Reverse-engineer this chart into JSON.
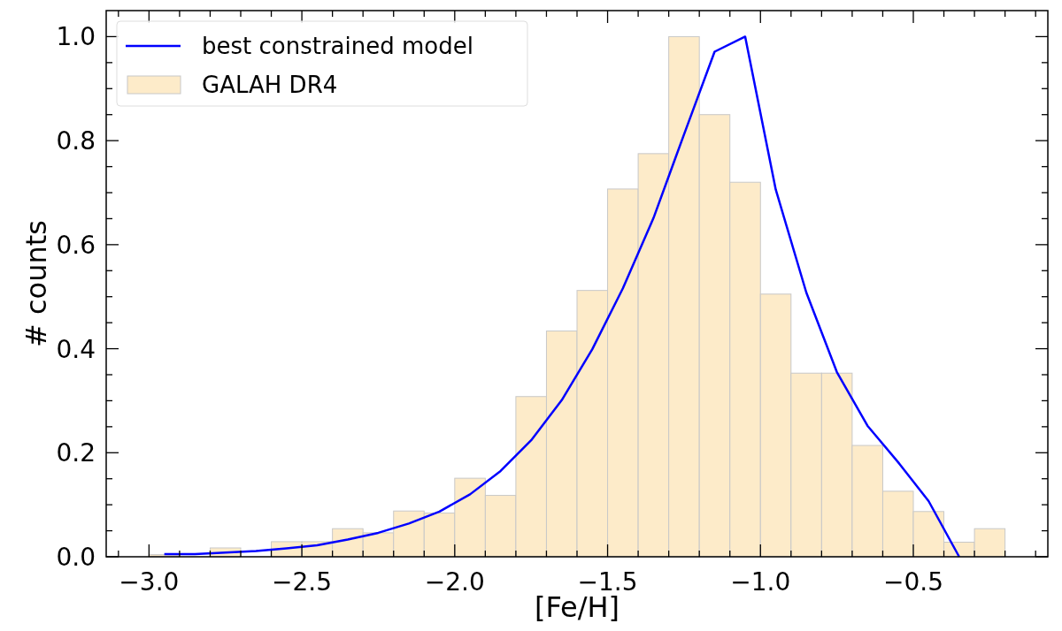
{
  "chart_data": {
    "type": "histogram",
    "xlabel": "[Fe/H]",
    "ylabel": "# counts",
    "legend": "top left",
    "xlim": [
      -3.14,
      -0.06
    ],
    "ylim": [
      0,
      1.05
    ],
    "xticks": [
      {
        "value": -3.1,
        "label": null
      },
      {
        "value": -3.0,
        "label": "−3.0"
      },
      {
        "value": -2.9,
        "label": null
      },
      {
        "value": -2.8,
        "label": null
      },
      {
        "value": -2.7,
        "label": null
      },
      {
        "value": -2.6,
        "label": null
      },
      {
        "value": -2.5,
        "label": "−2.5"
      },
      {
        "value": -2.4,
        "label": null
      },
      {
        "value": -2.3,
        "label": null
      },
      {
        "value": -2.2,
        "label": null
      },
      {
        "value": -2.1,
        "label": null
      },
      {
        "value": -2.0,
        "label": "−2.0"
      },
      {
        "value": -1.9,
        "label": null
      },
      {
        "value": -1.8,
        "label": null
      },
      {
        "value": -1.7,
        "label": null
      },
      {
        "value": -1.6,
        "label": null
      },
      {
        "value": -1.5,
        "label": "−1.5"
      },
      {
        "value": -1.4,
        "label": null
      },
      {
        "value": -1.3,
        "label": null
      },
      {
        "value": -1.2,
        "label": null
      },
      {
        "value": -1.1,
        "label": null
      },
      {
        "value": -1.0,
        "label": "−1.0"
      },
      {
        "value": -0.9,
        "label": null
      },
      {
        "value": -0.8,
        "label": null
      },
      {
        "value": -0.7,
        "label": null
      },
      {
        "value": -0.6,
        "label": null
      },
      {
        "value": -0.5,
        "label": "−0.5"
      },
      {
        "value": -0.4,
        "label": null
      },
      {
        "value": -0.3,
        "label": null
      },
      {
        "value": -0.2,
        "label": null
      },
      {
        "value": -0.1,
        "label": null
      }
    ],
    "yticks": [
      {
        "value": 0,
        "label": "0.0"
      },
      {
        "value": 0.05,
        "label": null
      },
      {
        "value": 0.1,
        "label": null
      },
      {
        "value": 0.15,
        "label": null
      },
      {
        "value": 0.2,
        "label": "0.2"
      },
      {
        "value": 0.25,
        "label": null
      },
      {
        "value": 0.3,
        "label": null
      },
      {
        "value": 0.35,
        "label": null
      },
      {
        "value": 0.4,
        "label": "0.4"
      },
      {
        "value": 0.45,
        "label": null
      },
      {
        "value": 0.5,
        "label": null
      },
      {
        "value": 0.55,
        "label": null
      },
      {
        "value": 0.6,
        "label": "0.6"
      },
      {
        "value": 0.65,
        "label": null
      },
      {
        "value": 0.7,
        "label": null
      },
      {
        "value": 0.75,
        "label": null
      },
      {
        "value": 0.8,
        "label": "0.8"
      },
      {
        "value": 0.85,
        "label": null
      },
      {
        "value": 0.9,
        "label": null
      },
      {
        "value": 0.95,
        "label": null
      },
      {
        "value": 1.0,
        "label": "1.0"
      }
    ],
    "series": [
      {
        "type": "line",
        "name": "best constrained model",
        "color": "#0000ff",
        "x": [
          -2.95,
          -2.85,
          -2.75,
          -2.65,
          -2.55,
          -2.45,
          -2.35,
          -2.25,
          -2.15,
          -2.05,
          -1.95,
          -1.85,
          -1.75,
          -1.65,
          -1.55,
          -1.45,
          -1.35,
          -1.25,
          -1.15,
          -1.05,
          -0.95,
          -0.85,
          -0.75,
          -0.65,
          -0.55,
          -0.45,
          -0.35
        ],
        "values": [
          0.005,
          0.005,
          0.008,
          0.011,
          0.016,
          0.022,
          0.033,
          0.046,
          0.064,
          0.087,
          0.12,
          0.165,
          0.224,
          0.301,
          0.399,
          0.516,
          0.651,
          0.812,
          0.971,
          1.0,
          0.706,
          0.508,
          0.355,
          0.252,
          0.182,
          0.107,
          0
        ]
      },
      {
        "name": "GALAH DR4",
        "color": "#fdebc9",
        "bins": [
          -3.0,
          -2.9,
          -2.8,
          -2.7,
          -2.6,
          -2.5,
          -2.4,
          -2.3,
          -2.2,
          -2.1,
          -2.0,
          -1.9,
          -1.8,
          -1.7,
          -1.6,
          -1.5,
          -1.4,
          -1.3,
          -1.2,
          -1.1,
          -1.0,
          -0.9,
          -0.8,
          -0.7,
          -0.6,
          -0.5,
          -0.4,
          -0.3,
          -0.2
        ],
        "values": [
          0.004,
          0,
          0.017,
          0,
          0.029,
          0.029,
          0.054,
          0.046,
          0.088,
          0.084,
          0.151,
          0.118,
          0.308,
          0.434,
          0.512,
          0.707,
          0.775,
          1.0,
          0.85,
          0.72,
          0.505,
          0.353,
          0.353,
          0.214,
          0.126,
          0.087,
          0.028,
          0.054
        ]
      }
    ]
  }
}
